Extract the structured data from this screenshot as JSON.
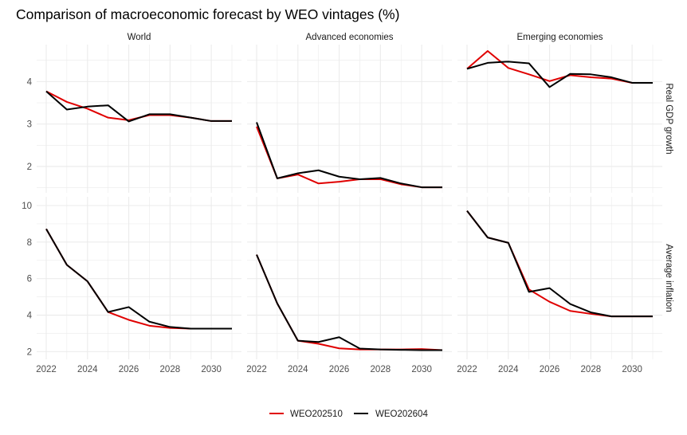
{
  "chart_data": {
    "type": "line",
    "title": "Comparison of macroeconomic forecast by WEO vintages (%)",
    "xlabel": "",
    "ylabel": "",
    "x": [
      2022,
      2023,
      2024,
      2025,
      2026,
      2027,
      2028,
      2029,
      2030,
      2031
    ],
    "x_ticks": [
      2022,
      2024,
      2026,
      2028,
      2030
    ],
    "grid": true,
    "legend": {
      "position": "bottom",
      "entries": [
        {
          "name": "WEO202510",
          "color": "#e00000"
        },
        {
          "name": "WEO202604",
          "color": "#000000"
        }
      ]
    },
    "columns": [
      "World",
      "Advanced economies",
      "Emerging economies"
    ],
    "rows": [
      {
        "label": "Real GDP growth",
        "ylim": [
          1.38,
          4.87
        ],
        "y_ticks": [
          2,
          3,
          4
        ],
        "y_minor": [
          1.5,
          2.5,
          3.5,
          4.5
        ],
        "panels": [
          {
            "column": "World",
            "series": [
              {
                "name": "WEO202510",
                "values": [
                  3.77,
                  3.52,
                  3.36,
                  3.15,
                  3.09,
                  3.21,
                  3.21,
                  3.15,
                  3.07,
                  3.07
                ]
              },
              {
                "name": "WEO202604",
                "values": [
                  3.77,
                  3.34,
                  3.41,
                  3.44,
                  3.06,
                  3.23,
                  3.23,
                  3.15,
                  3.07,
                  3.07
                ]
              }
            ]
          },
          {
            "column": "Advanced economies",
            "series": [
              {
                "name": "WEO202510",
                "values": [
                  2.94,
                  1.72,
                  1.81,
                  1.6,
                  1.64,
                  1.7,
                  1.7,
                  1.58,
                  1.51,
                  1.51
                ]
              },
              {
                "name": "WEO202604",
                "values": [
                  3.04,
                  1.72,
                  1.84,
                  1.91,
                  1.76,
                  1.7,
                  1.73,
                  1.6,
                  1.51,
                  1.51
                ]
              }
            ]
          },
          {
            "column": "Emerging economies",
            "series": [
              {
                "name": "WEO202510",
                "values": [
                  4.3,
                  4.72,
                  4.32,
                  4.17,
                  4.01,
                  4.15,
                  4.1,
                  4.07,
                  3.97,
                  3.97
                ]
              },
              {
                "name": "WEO202604",
                "values": [
                  4.3,
                  4.44,
                  4.47,
                  4.43,
                  3.87,
                  4.18,
                  4.17,
                  4.1,
                  3.97,
                  3.97
                ]
              }
            ]
          }
        ]
      },
      {
        "label": "Average inflation",
        "ylim": [
          1.58,
          10.48
        ],
        "y_ticks": [
          2,
          4,
          6,
          8,
          10
        ],
        "y_minor": [
          3,
          5,
          7,
          9
        ],
        "panels": [
          {
            "column": "World",
            "series": [
              {
                "name": "WEO202510",
                "values": [
                  8.72,
                  6.75,
                  5.85,
                  4.17,
                  3.74,
                  3.42,
                  3.3,
                  3.26,
                  3.26,
                  3.26
                ]
              },
              {
                "name": "WEO202604",
                "values": [
                  8.72,
                  6.75,
                  5.85,
                  4.17,
                  4.44,
                  3.64,
                  3.35,
                  3.26,
                  3.26,
                  3.26
                ]
              }
            ]
          },
          {
            "column": "Advanced economies",
            "series": [
              {
                "name": "WEO202510",
                "values": [
                  7.31,
                  4.64,
                  2.6,
                  2.43,
                  2.18,
                  2.12,
                  2.12,
                  2.12,
                  2.14,
                  2.08
                ]
              },
              {
                "name": "WEO202604",
                "values": [
                  7.31,
                  4.64,
                  2.6,
                  2.53,
                  2.79,
                  2.17,
                  2.12,
                  2.1,
                  2.08,
                  2.08
                ]
              }
            ]
          },
          {
            "column": "Emerging economies",
            "series": [
              {
                "name": "WEO202510",
                "values": [
                  9.71,
                  8.25,
                  7.96,
                  5.41,
                  4.73,
                  4.23,
                  4.07,
                  3.93,
                  3.93,
                  3.93
                ]
              },
              {
                "name": "WEO202604",
                "values": [
                  9.71,
                  8.25,
                  7.96,
                  5.27,
                  5.48,
                  4.61,
                  4.15,
                  3.93,
                  3.93,
                  3.93
                ]
              }
            ]
          }
        ]
      }
    ]
  }
}
